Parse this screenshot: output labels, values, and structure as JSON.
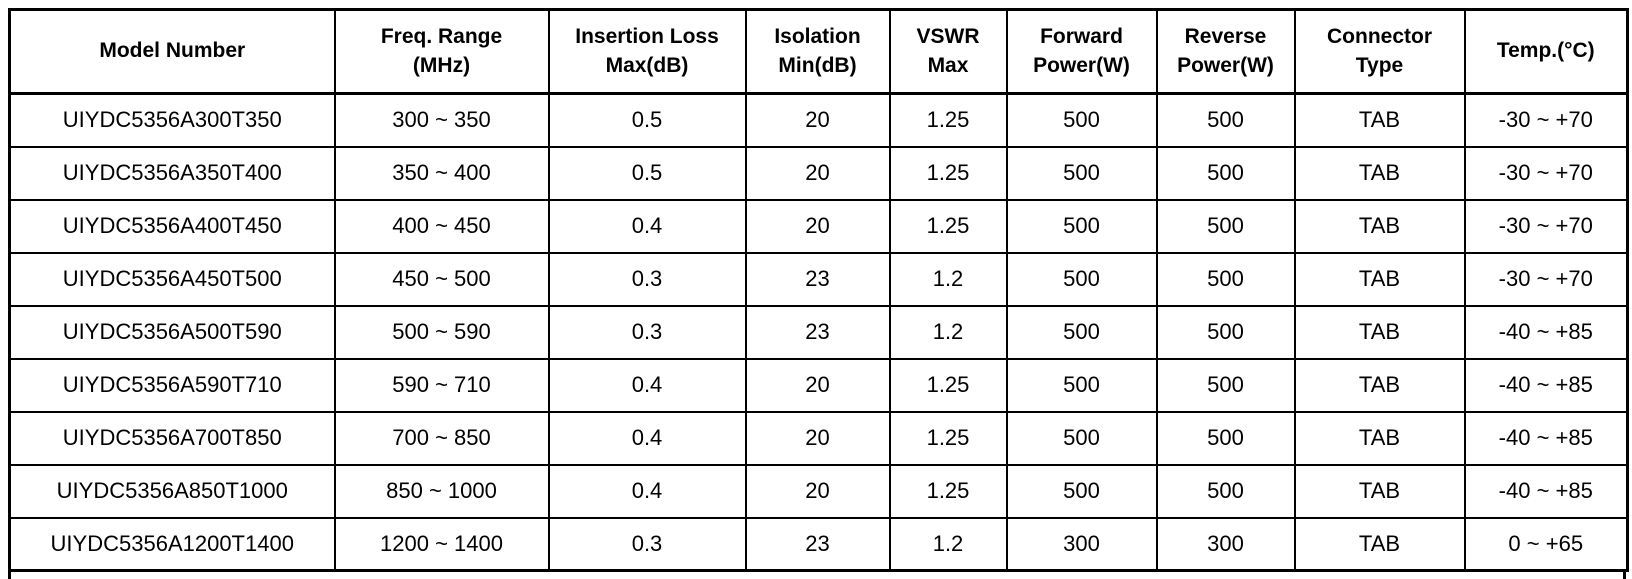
{
  "page": {
    "background_color": "#ffffff",
    "border_color": "#000000",
    "text_color": "#000000"
  },
  "table": {
    "headers": [
      "Model Number",
      "Freq. Range\n(MHz)",
      "Insertion Loss\nMax(dB)",
      "Isolation\nMin(dB)",
      "VSWR\nMax",
      "Forward\nPower(W)",
      "Reverse\nPower(W)",
      "Connector\nType",
      "Temp.(°C)"
    ],
    "rows": [
      [
        "UIYDC5356A300T350",
        "300 ~ 350",
        "0.5",
        "20",
        "1.25",
        "500",
        "500",
        "TAB",
        "-30 ~ +70"
      ],
      [
        "UIYDC5356A350T400",
        "350 ~ 400",
        "0.5",
        "20",
        "1.25",
        "500",
        "500",
        "TAB",
        "-30 ~ +70"
      ],
      [
        "UIYDC5356A400T450",
        "400 ~ 450",
        "0.4",
        "20",
        "1.25",
        "500",
        "500",
        "TAB",
        "-30 ~ +70"
      ],
      [
        "UIYDC5356A450T500",
        "450 ~ 500",
        "0.3",
        "23",
        "1.2",
        "500",
        "500",
        "TAB",
        "-30 ~ +70"
      ],
      [
        "UIYDC5356A500T590",
        "500 ~ 590",
        "0.3",
        "23",
        "1.2",
        "500",
        "500",
        "TAB",
        "-40 ~ +85"
      ],
      [
        "UIYDC5356A590T710",
        "590 ~ 710",
        "0.4",
        "20",
        "1.25",
        "500",
        "500",
        "TAB",
        "-40 ~ +85"
      ],
      [
        "UIYDC5356A700T850",
        "700 ~ 850",
        "0.4",
        "20",
        "1.25",
        "500",
        "500",
        "TAB",
        "-40 ~ +85"
      ],
      [
        "UIYDC5356A850T1000",
        "850 ~ 1000",
        "0.4",
        "20",
        "1.25",
        "500",
        "500",
        "TAB",
        "-40 ~ +85"
      ],
      [
        "UIYDC5356A1200T1400",
        "1200 ~ 1400",
        "0.3",
        "23",
        "1.2",
        "300",
        "300",
        "TAB",
        "0 ~ +65"
      ]
    ]
  }
}
